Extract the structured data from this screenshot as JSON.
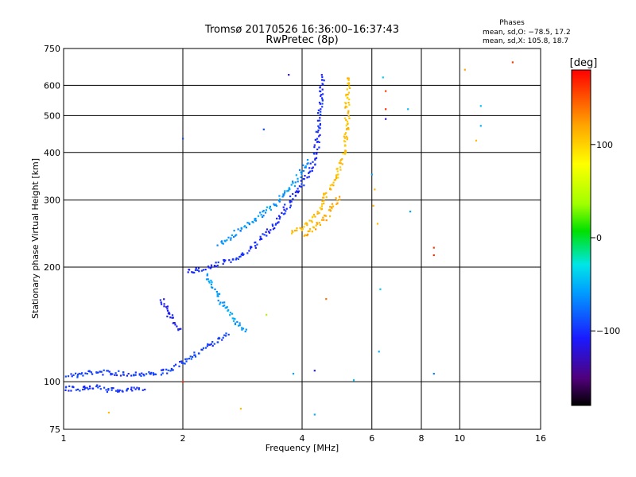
{
  "chart_data": {
    "type": "scatter",
    "title": "Tromsø 20170526 16:36:00–16:37:43",
    "subtitle": "RwPretec (8p)",
    "stats": {
      "title": "Phases",
      "line1": "mean, sd,O: −78.5, 17.2",
      "line2": "mean, sd,X: 105.8, 18.7"
    },
    "xlabel": "Frequency [MHz]",
    "ylabel": "Stationary phase Virtual Height [km]",
    "x_scale": "log2",
    "y_scale": "log",
    "xlim": [
      1,
      16
    ],
    "ylim": [
      75,
      750
    ],
    "x_ticks": [
      1,
      2,
      4,
      6,
      8,
      10,
      16
    ],
    "x_tick_labels": [
      "1",
      "2",
      "4",
      "6",
      "8",
      "10",
      "16"
    ],
    "y_ticks": [
      75,
      100,
      200,
      300,
      400,
      500,
      600,
      750
    ],
    "y_tick_labels": [
      "75",
      "100",
      "200",
      "300",
      "400",
      "500",
      "600",
      "750"
    ],
    "grid": true,
    "colorbar": {
      "label": "[deg]",
      "range": [
        -180,
        180
      ],
      "ticks": [
        100,
        0,
        -100
      ],
      "tick_labels": [
        "100",
        "0",
        "−100"
      ]
    },
    "traces": [
      {
        "points": [
          [
            1.0,
            104
          ],
          [
            1.1,
            104
          ],
          [
            1.17,
            106
          ],
          [
            1.25,
            106
          ],
          [
            1.4,
            105
          ],
          [
            1.5,
            105
          ],
          [
            1.7,
            105
          ],
          [
            1.85,
            107
          ],
          [
            1.95,
            110
          ],
          [
            2.05,
            115
          ],
          [
            2.2,
            120
          ],
          [
            2.35,
            125
          ],
          [
            2.5,
            130
          ],
          [
            2.6,
            135
          ]
        ],
        "phase": -95
      },
      {
        "points": [
          [
            1.0,
            96
          ],
          [
            1.15,
            96
          ],
          [
            1.22,
            98
          ],
          [
            1.3,
            95
          ],
          [
            1.45,
            95
          ],
          [
            1.6,
            96
          ]
        ],
        "phase": -98
      },
      {
        "points": [
          [
            1.75,
            165
          ],
          [
            1.8,
            158
          ],
          [
            1.85,
            150
          ],
          [
            1.9,
            143
          ],
          [
            1.95,
            138
          ],
          [
            2.0,
            136
          ]
        ],
        "phase": -108
      },
      {
        "points": [
          [
            2.05,
            195
          ],
          [
            2.2,
            197
          ],
          [
            2.35,
            200
          ],
          [
            2.5,
            205
          ],
          [
            2.65,
            208
          ],
          [
            2.8,
            215
          ],
          [
            2.95,
            222
          ],
          [
            3.05,
            228
          ],
          [
            3.2,
            240
          ],
          [
            3.4,
            258
          ],
          [
            3.6,
            280
          ],
          [
            3.8,
            305
          ],
          [
            3.95,
            325
          ],
          [
            4.1,
            345
          ],
          [
            4.25,
            370
          ],
          [
            4.35,
            410
          ],
          [
            4.42,
            480
          ],
          [
            4.47,
            560
          ],
          [
            4.5,
            640
          ]
        ],
        "phase": -102
      },
      {
        "points": [
          [
            2.45,
            230
          ],
          [
            2.6,
            238
          ],
          [
            2.75,
            248
          ],
          [
            2.9,
            258
          ],
          [
            3.05,
            268
          ],
          [
            3.2,
            278
          ],
          [
            3.4,
            290
          ],
          [
            3.55,
            305
          ],
          [
            3.75,
            325
          ],
          [
            3.9,
            345
          ],
          [
            4.05,
            365
          ],
          [
            4.2,
            380
          ]
        ],
        "phase": -62
      },
      {
        "points": [
          [
            2.3,
            190
          ],
          [
            2.4,
            175
          ],
          [
            2.5,
            162
          ],
          [
            2.6,
            152
          ],
          [
            2.7,
            145
          ],
          [
            2.8,
            140
          ],
          [
            2.9,
            135
          ]
        ],
        "phase": -58
      },
      {
        "points": [
          [
            3.75,
            248
          ],
          [
            3.95,
            252
          ],
          [
            4.1,
            260
          ],
          [
            4.3,
            272
          ],
          [
            4.45,
            290
          ],
          [
            4.6,
            310
          ],
          [
            4.75,
            330
          ],
          [
            4.9,
            350
          ],
          [
            5.0,
            375
          ],
          [
            5.1,
            395
          ],
          [
            5.15,
            420
          ],
          [
            5.18,
            460
          ],
          [
            5.2,
            520
          ],
          [
            5.22,
            600
          ],
          [
            5.25,
            640
          ]
        ],
        "phase": 108
      },
      {
        "points": [
          [
            4.0,
            240
          ],
          [
            4.2,
            248
          ],
          [
            4.4,
            258
          ],
          [
            4.6,
            272
          ],
          [
            4.8,
            290
          ],
          [
            5.0,
            305
          ]
        ],
        "phase": 118
      }
    ],
    "scattered_points": [
      {
        "x": 6.0,
        "y": 350,
        "phase": -55
      },
      {
        "x": 6.1,
        "y": 320,
        "phase": 110
      },
      {
        "x": 6.05,
        "y": 290,
        "phase": 115
      },
      {
        "x": 6.2,
        "y": 260,
        "phase": 110
      },
      {
        "x": 6.3,
        "y": 175,
        "phase": -40
      },
      {
        "x": 6.25,
        "y": 120,
        "phase": -50
      },
      {
        "x": 6.4,
        "y": 630,
        "phase": -40
      },
      {
        "x": 6.5,
        "y": 580,
        "phase": 160
      },
      {
        "x": 6.5,
        "y": 520,
        "phase": 165
      },
      {
        "x": 7.4,
        "y": 520,
        "phase": -45
      },
      {
        "x": 7.5,
        "y": 280,
        "phase": -55
      },
      {
        "x": 8.6,
        "y": 225,
        "phase": 160
      },
      {
        "x": 8.6,
        "y": 215,
        "phase": 165
      },
      {
        "x": 8.6,
        "y": 105,
        "phase": -70
      },
      {
        "x": 10.3,
        "y": 660,
        "phase": 120
      },
      {
        "x": 11.3,
        "y": 530,
        "phase": -45
      },
      {
        "x": 11.3,
        "y": 470,
        "phase": -50
      },
      {
        "x": 11.0,
        "y": 430,
        "phase": 110
      },
      {
        "x": 13.6,
        "y": 690,
        "phase": 160
      },
      {
        "x": 3.2,
        "y": 460,
        "phase": -90
      },
      {
        "x": 2.0,
        "y": 100,
        "phase": 165
      },
      {
        "x": 1.3,
        "y": 83,
        "phase": 110
      },
      {
        "x": 2.8,
        "y": 85,
        "phase": 110
      },
      {
        "x": 3.25,
        "y": 150,
        "phase": 40
      },
      {
        "x": 3.8,
        "y": 105,
        "phase": -55
      },
      {
        "x": 4.3,
        "y": 107,
        "phase": -110
      },
      {
        "x": 4.6,
        "y": 165,
        "phase": 140
      },
      {
        "x": 4.3,
        "y": 82,
        "phase": -50
      },
      {
        "x": 5.4,
        "y": 101,
        "phase": -45
      },
      {
        "x": 6.5,
        "y": 490,
        "phase": -120
      },
      {
        "x": 3.7,
        "y": 640,
        "phase": -120
      },
      {
        "x": 2.0,
        "y": 435,
        "phase": -90
      }
    ]
  }
}
